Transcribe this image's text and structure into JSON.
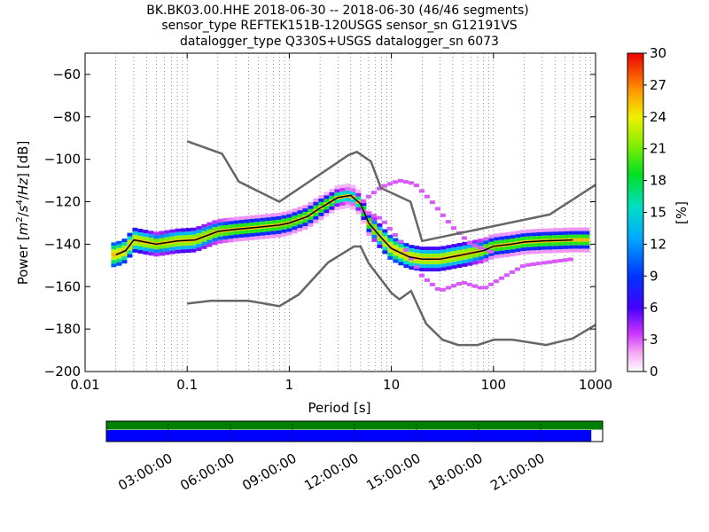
{
  "chart_data": {
    "type": "heatmap",
    "title_lines": [
      "BK.BK03.00.HHE   2018-06-30 -- 2018-06-30  (46/46 segments)",
      "sensor_type REFTEK151B-120USGS sensor_sn G12191VS",
      "datalogger_type Q330S+USGS datalogger_sn 6073"
    ],
    "xlabel": "Period [s]",
    "ylabel_parts": [
      "Power [",
      "m",
      "2",
      "/",
      "s",
      "4",
      "/",
      "Hz",
      "] [dB]"
    ],
    "xscale": "log",
    "xlim": [
      0.01,
      1000
    ],
    "ylim": [
      -200,
      -50
    ],
    "x_ticks": [
      {
        "value": 0.01,
        "label": "0.01"
      },
      {
        "value": 0.1,
        "label": "0.1"
      },
      {
        "value": 1,
        "label": "1"
      },
      {
        "value": 10,
        "label": "10"
      },
      {
        "value": 100,
        "label": "100"
      },
      {
        "value": 1000,
        "label": "1000"
      }
    ],
    "y_ticks": [
      {
        "value": -60,
        "label": "−60"
      },
      {
        "value": -80,
        "label": "−80"
      },
      {
        "value": -100,
        "label": "−100"
      },
      {
        "value": -120,
        "label": "−120"
      },
      {
        "value": -140,
        "label": "−140"
      },
      {
        "value": -160,
        "label": "−160"
      },
      {
        "value": -180,
        "label": "−180"
      },
      {
        "value": -200,
        "label": "−200"
      }
    ],
    "grid": "dotted vertical at log subdivisions",
    "noise_model_high": [
      [
        0.1,
        -91.5
      ],
      [
        0.22,
        -97.4
      ],
      [
        0.32,
        -110.5
      ],
      [
        0.8,
        -120
      ],
      [
        3.8,
        -98
      ],
      [
        4.6,
        -96.5
      ],
      [
        6.3,
        -101
      ],
      [
        7.9,
        -113.5
      ],
      [
        15.4,
        -120
      ],
      [
        20,
        -138.5
      ],
      [
        354.8,
        -126
      ],
      [
        1000,
        -112
      ]
    ],
    "noise_model_low": [
      [
        0.1,
        -168
      ],
      [
        0.17,
        -166.7
      ],
      [
        0.4,
        -166.7
      ],
      [
        0.8,
        -169.2
      ],
      [
        1.24,
        -163.7
      ],
      [
        2.4,
        -148.6
      ],
      [
        4.3,
        -141.1
      ],
      [
        5,
        -141.1
      ],
      [
        6,
        -149
      ],
      [
        10,
        -163
      ],
      [
        12,
        -166
      ],
      [
        15.6,
        -162
      ],
      [
        21.9,
        -177.5
      ],
      [
        31.6,
        -185
      ],
      [
        45,
        -187.5
      ],
      [
        70,
        -187.5
      ],
      [
        101,
        -185
      ],
      [
        154,
        -185
      ],
      [
        328,
        -187.5
      ],
      [
        600,
        -184.4
      ],
      [
        1000,
        -178
      ]
    ],
    "mean_curve": [
      [
        0.02,
        -145
      ],
      [
        0.025,
        -143
      ],
      [
        0.03,
        -138
      ],
      [
        0.05,
        -140
      ],
      [
        0.08,
        -138.5
      ],
      [
        0.12,
        -138
      ],
      [
        0.2,
        -134
      ],
      [
        0.3,
        -133
      ],
      [
        0.5,
        -132
      ],
      [
        0.8,
        -131
      ],
      [
        1,
        -130
      ],
      [
        1.5,
        -127
      ],
      [
        2,
        -123
      ],
      [
        3,
        -118
      ],
      [
        4,
        -117
      ],
      [
        5,
        -121
      ],
      [
        6,
        -130
      ],
      [
        8,
        -137
      ],
      [
        10,
        -142
      ],
      [
        15,
        -146
      ],
      [
        20,
        -147
      ],
      [
        30,
        -147
      ],
      [
        50,
        -145
      ],
      [
        80,
        -143
      ],
      [
        100,
        -141
      ],
      [
        150,
        -140
      ],
      [
        200,
        -139
      ],
      [
        300,
        -138.5
      ],
      [
        600,
        -138
      ]
    ],
    "spread_curve": [
      [
        0.02,
        -5
      ],
      [
        0.05,
        -3.5
      ],
      [
        0.1,
        -4
      ],
      [
        0.3,
        -3
      ],
      [
        1,
        -3
      ],
      [
        2,
        -3
      ],
      [
        4,
        -2
      ],
      [
        6,
        -3
      ],
      [
        10,
        -5
      ],
      [
        20,
        -4
      ],
      [
        50,
        -4
      ],
      [
        100,
        -3
      ],
      [
        200,
        -3
      ],
      [
        600,
        -3
      ]
    ],
    "outlier_curves": [
      [
        [
          5,
          -121
        ],
        [
          6,
          -117.5
        ],
        [
          8,
          -113
        ],
        [
          12,
          -110
        ],
        [
          17,
          -111.5
        ],
        [
          25,
          -120
        ],
        [
          40,
          -132
        ],
        [
          60,
          -140
        ],
        [
          100,
          -144
        ]
      ],
      [
        [
          5,
          -124
        ],
        [
          8,
          -128
        ],
        [
          12,
          -138
        ],
        [
          20,
          -155
        ],
        [
          30,
          -162
        ],
        [
          50,
          -158
        ],
        [
          80,
          -161
        ],
        [
          120,
          -156
        ],
        [
          200,
          -150
        ],
        [
          600,
          -147
        ]
      ]
    ],
    "colorbar": {
      "label": "[%]",
      "range": [
        0,
        30
      ],
      "ticks": [
        "0",
        "3",
        "6",
        "9",
        "12",
        "15",
        "18",
        "21",
        "24",
        "27",
        "30"
      ],
      "colormap": "pqlx"
    },
    "segment_coverage": {
      "top_bar_color": "#008000",
      "bottom_bar_color": "#0000ff",
      "bottom_fill_fraction": 0.978,
      "time_labels": [
        "03:00:00",
        "06:00:00",
        "09:00:00",
        "12:00:00",
        "15:00:00",
        "18:00:00",
        "21:00:00"
      ]
    }
  }
}
